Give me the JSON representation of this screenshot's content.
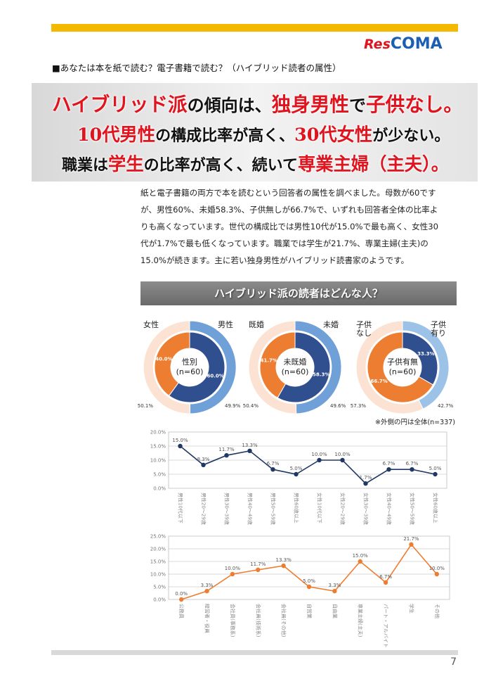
{
  "header": {
    "logo": {
      "res": "Res",
      "coma": "COMA"
    },
    "section": "■あなたは本を紙で読む？電子書籍で読む？（ハイブリッド読者の属性）"
  },
  "headline": [
    [
      {
        "text": "ハイブリッド派",
        "em": true
      },
      {
        "text": "の傾向は、",
        "em": false
      },
      {
        "text": "独身男性",
        "em": true
      },
      {
        "text": "で",
        "em": false
      },
      {
        "text": "子供なし。",
        "em": true
      }
    ],
    [
      {
        "text": "10代男性",
        "em": true
      },
      {
        "text": "の構成比率が高く、",
        "em": false
      },
      {
        "text": "30代女性",
        "em": true
      },
      {
        "text": "が少ない。",
        "em": false
      }
    ],
    [
      {
        "text": "職業は",
        "em": false
      },
      {
        "text": "学生",
        "em": true
      },
      {
        "text": "の比率が高く、続いて",
        "em": false
      },
      {
        "text": "専業主婦（主夫）。",
        "em": true
      }
    ]
  ],
  "body": "紙と電子書籍の両方で本を読むという回答者の属性を調べました。母数が60ですが、男性60%、未婚58.3%、子供無しが66.7%で、いずれも回答者全体の比率よりも高くなっています。世代の構成比では男性10代が15.0%で最も高く、女性30代が1.7%で最も低くなっています。職業では学生が21.7%、専業主婦(主夫)の15.0%が続きます。主に若い独身男性がハイブリッド読書家のようです。",
  "banner": "ハイブリッド派の読者はどんな人？",
  "note": "※外側の円は全体(n=337)",
  "chart_data": [
    {
      "type": "donut",
      "categories": [
        "男性",
        "女性"
      ],
      "center_label": "性別\n(n=60)",
      "inner": {
        "values": [
          60.0,
          40.0
        ],
        "value_labels": [
          "60.0%",
          "40.0%"
        ],
        "colors": [
          "#2f4f8f",
          "#ed7d31"
        ]
      },
      "outer": {
        "values": [
          49.9,
          50.1
        ],
        "value_labels": [
          "49.9%",
          "50.1%"
        ],
        "colors": [
          "#6fa0d8",
          "#fbe2d2"
        ]
      }
    },
    {
      "type": "donut",
      "categories": [
        "未婚",
        "既婚"
      ],
      "center_label": "未既婚\n(n=60)",
      "inner": {
        "values": [
          58.3,
          41.7
        ],
        "value_labels": [
          "58.3%",
          "41.7%"
        ],
        "colors": [
          "#2f4f8f",
          "#ed7d31"
        ]
      },
      "outer": {
        "values": [
          49.6,
          50.4
        ],
        "value_labels": [
          "49.6%",
          "50.4%"
        ],
        "colors": [
          "#6fa0d8",
          "#fbe2d2"
        ]
      }
    },
    {
      "type": "donut",
      "categories": [
        "子供\n有り",
        "子供\nなし"
      ],
      "center_label": "子供有無\n(n=60)",
      "inner": {
        "values": [
          33.3,
          66.7
        ],
        "value_labels": [
          "33.3%",
          "66.7%"
        ],
        "colors": [
          "#2f4f8f",
          "#ed7d31"
        ]
      },
      "outer": {
        "values": [
          42.7,
          57.3
        ],
        "value_labels": [
          "42.7%",
          "57.3%"
        ],
        "colors": [
          "#9cc2e8",
          "#fbe2d2"
        ]
      }
    },
    {
      "type": "line",
      "color": "#1f3864",
      "grid": true,
      "categories": [
        "男性10代以下",
        "男性20～29歳",
        "男性30～39歳",
        "男性40～49歳",
        "男性50～59歳",
        "男性60歳以上",
        "女性10代以下",
        "女性20～29歳",
        "女性30～39歳",
        "女性40～49歳",
        "女性50～59歳",
        "女性60歳以上"
      ],
      "values": [
        15.0,
        8.3,
        11.7,
        13.3,
        6.7,
        5.0,
        10.0,
        10.0,
        1.7,
        6.7,
        6.7,
        5.0
      ],
      "value_labels": [
        "15.0%",
        "8.3%",
        "11.7%",
        "13.3%",
        "6.7%",
        "5.0%",
        "10.0%",
        "10.0%",
        "1.7%",
        "6.7%",
        "6.7%",
        "5.0%"
      ],
      "ylim": [
        0,
        20
      ],
      "yticks": [
        {
          "value": 0,
          "label": "0.0%"
        },
        {
          "value": 5,
          "label": "5.0%"
        },
        {
          "value": 10,
          "label": "10.0%"
        },
        {
          "value": 15,
          "label": "15.0%"
        },
        {
          "value": 20,
          "label": "20.0%"
        }
      ]
    },
    {
      "type": "line",
      "color": "#ed7d31",
      "grid": true,
      "categories": [
        "公務員",
        "経営者・役員",
        "会社員(事務系)",
        "会社員(技術系)",
        "会社員(その他)",
        "自営業",
        "自由業",
        "専業主婦(主夫)",
        "パート・アルバイト",
        "学生",
        "その他"
      ],
      "values": [
        0.0,
        3.3,
        10.0,
        11.7,
        13.3,
        5.0,
        3.3,
        15.0,
        6.7,
        21.7,
        10.0
      ],
      "value_labels": [
        "0.0%",
        "3.3%",
        "10.0%",
        "11.7%",
        "13.3%",
        "5.0%",
        "3.3%",
        "15.0%",
        "6.7%",
        "21.7%",
        "10.0%"
      ],
      "ylim": [
        0,
        25
      ],
      "yticks": [
        {
          "value": 0,
          "label": "0.0%"
        },
        {
          "value": 5,
          "label": "5.0%"
        },
        {
          "value": 10,
          "label": "10.0%"
        },
        {
          "value": 15,
          "label": "15.0%"
        },
        {
          "value": 20,
          "label": "20.0%"
        },
        {
          "value": 25,
          "label": "25.0%"
        }
      ]
    }
  ],
  "footer": {
    "page": "7"
  }
}
